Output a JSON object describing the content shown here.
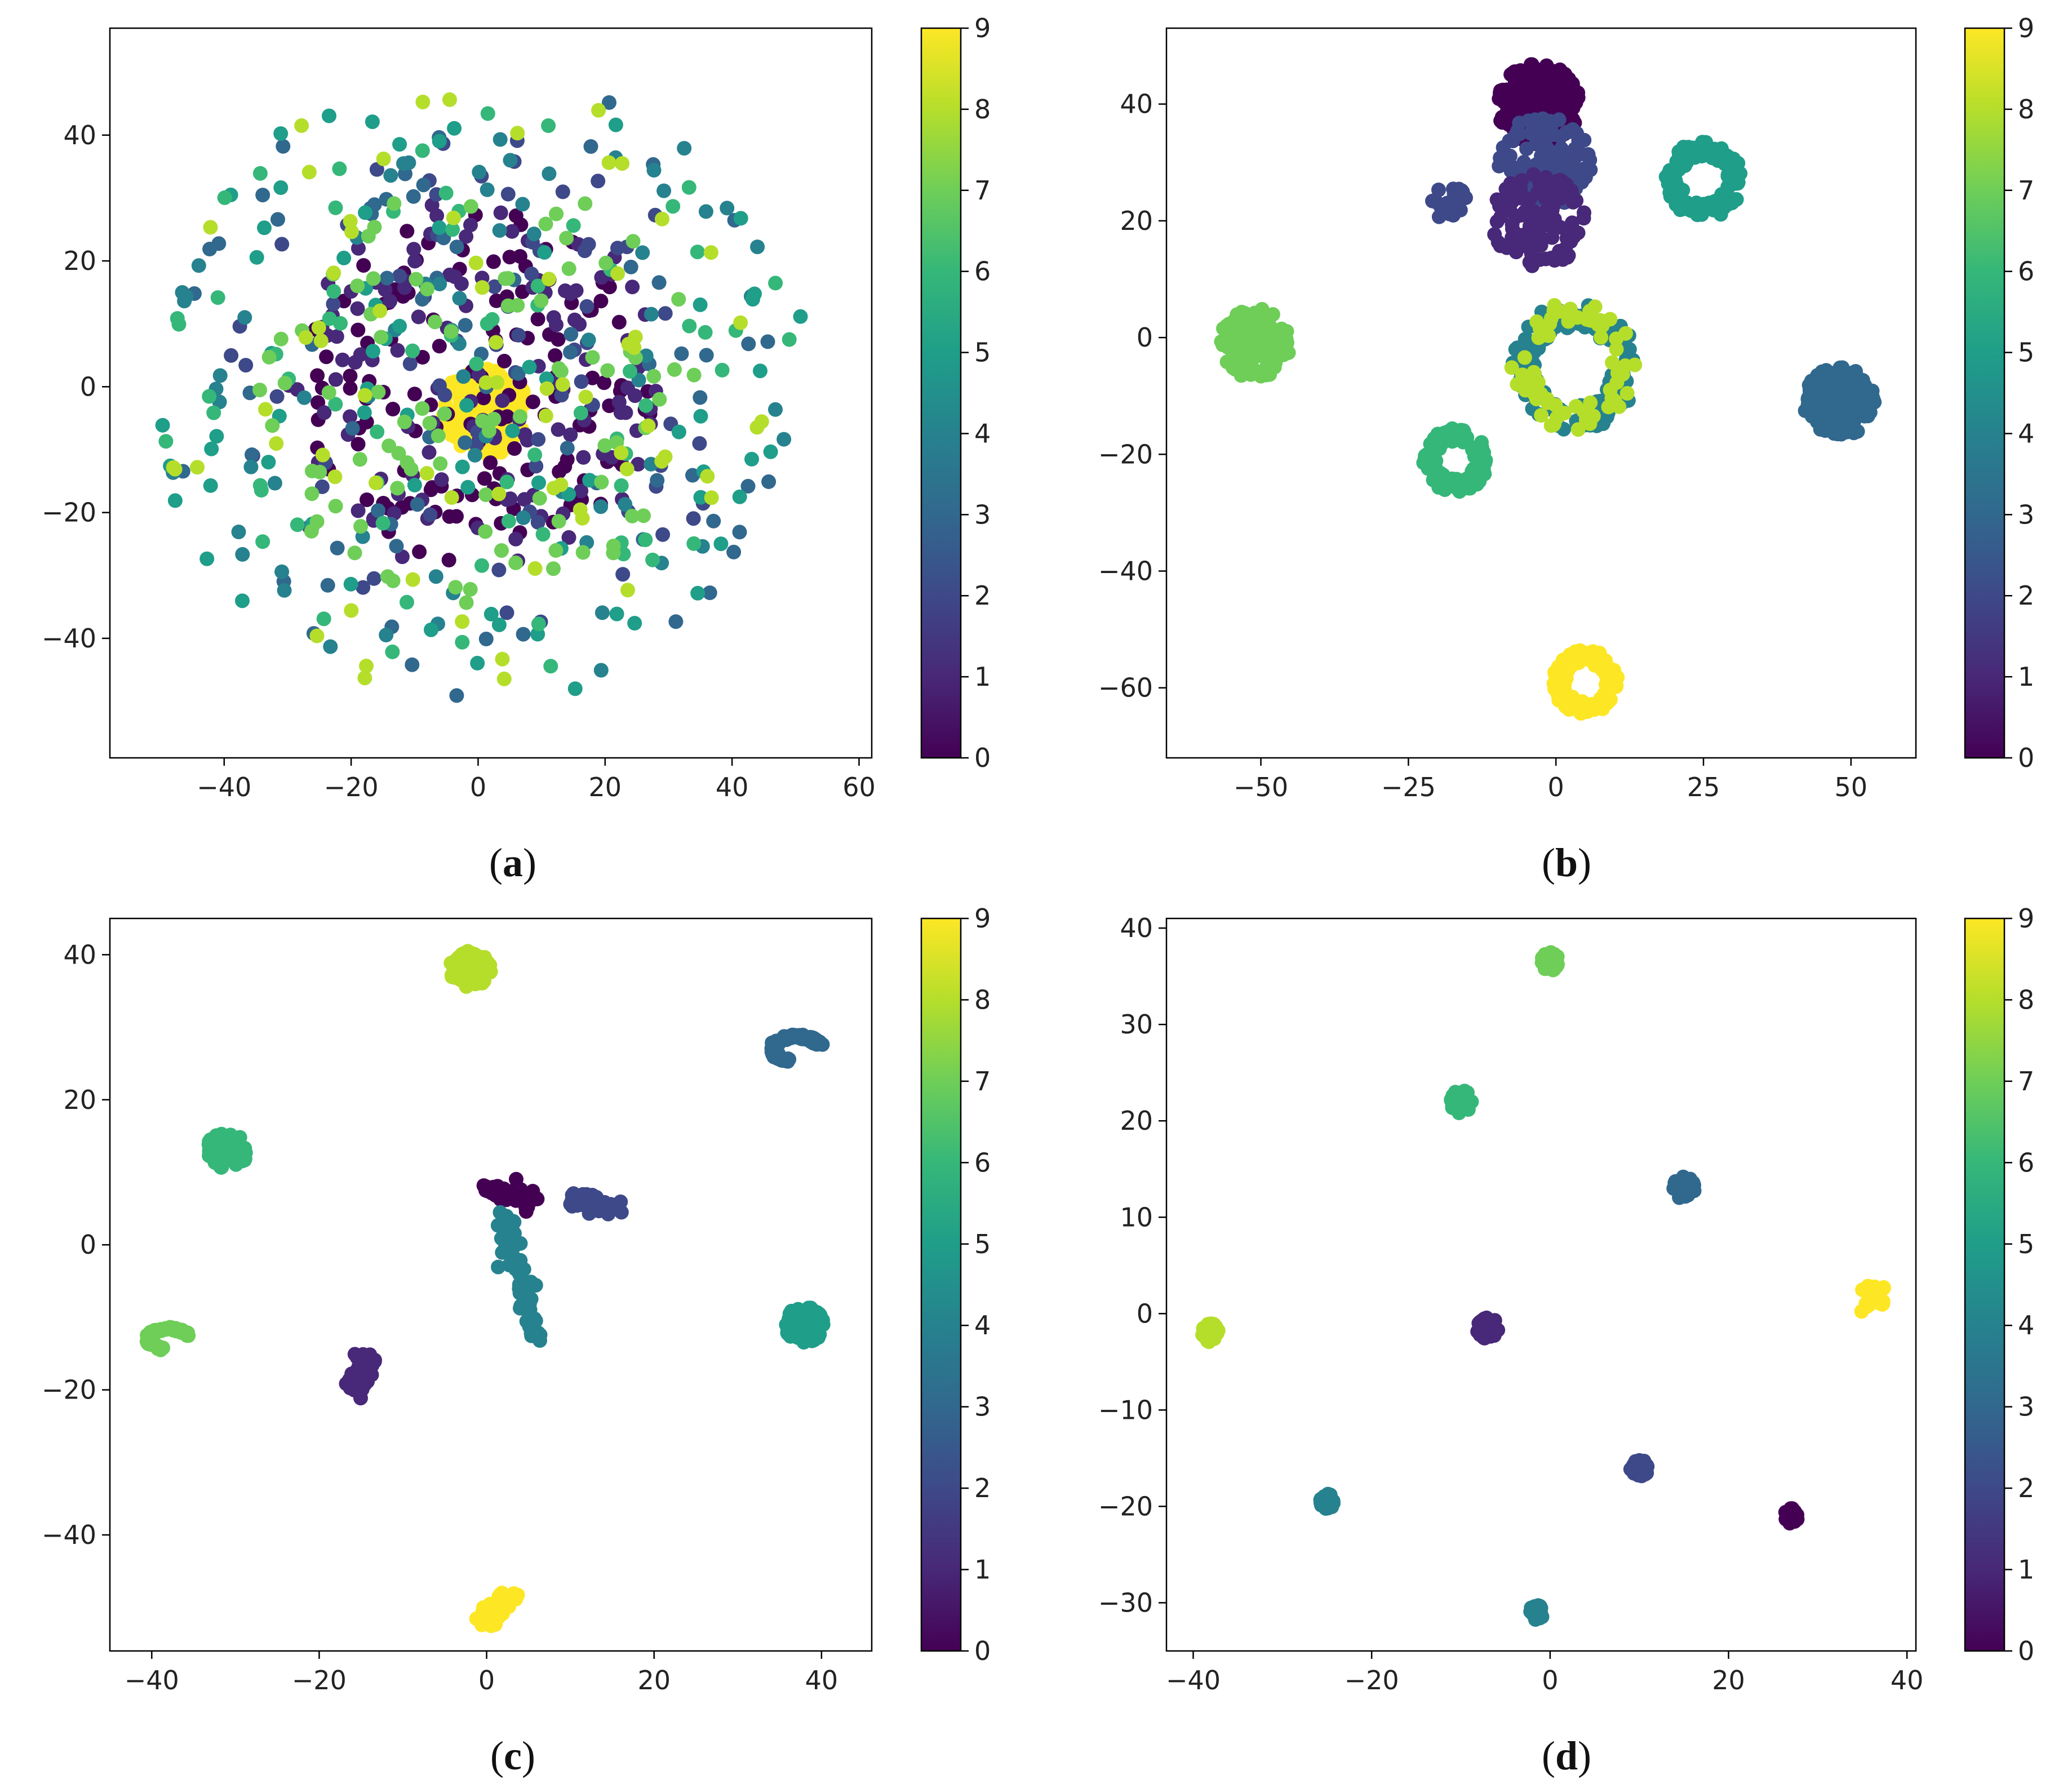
{
  "colormap": {
    "name": "viridis",
    "stops": [
      "#440154",
      "#482878",
      "#3e4989",
      "#31688e",
      "#26828e",
      "#1f9e89",
      "#35b779",
      "#6ece58",
      "#b5de2b",
      "#fde725"
    ]
  },
  "chart_data": [
    {
      "panel": "a",
      "type": "scatter",
      "caption": "(a)",
      "caption_prefix": "(",
      "caption_letter": "a",
      "caption_suffix": ")",
      "xlim": [
        -58,
        62
      ],
      "ylim": [
        -59,
        57
      ],
      "xticks": [
        -40,
        -20,
        0,
        20,
        40,
        60
      ],
      "yticks": [
        -40,
        -20,
        0,
        20,
        40
      ],
      "colorbar": {
        "min": 0,
        "max": 9,
        "ticks": [
          0,
          1,
          2,
          3,
          4,
          5,
          6,
          7,
          8,
          9
        ]
      },
      "layout_note": "diffuse cloud, classes mixed; class 9 dense blob at centre",
      "clusters": [
        {
          "label": 9,
          "cx": 1,
          "cy": -4,
          "shape": "blob",
          "r": 7,
          "n": 180
        },
        {
          "label": 0,
          "cx": 0,
          "cy": 0,
          "shape": "scatter",
          "r": 28,
          "n": 140
        },
        {
          "label": 1,
          "cx": 0,
          "cy": 0,
          "shape": "scatter",
          "r": 30,
          "n": 120
        },
        {
          "label": 2,
          "cx": 0,
          "cy": 0,
          "shape": "scatter",
          "r": 40,
          "n": 70
        },
        {
          "label": 3,
          "cx": 0,
          "cy": 0,
          "shape": "scatter",
          "r": 50,
          "n": 70
        },
        {
          "label": 4,
          "cx": 0,
          "cy": 0,
          "shape": "scatter",
          "r": 50,
          "n": 70
        },
        {
          "label": 5,
          "cx": 0,
          "cy": 0,
          "shape": "scatter",
          "r": 52,
          "n": 70
        },
        {
          "label": 6,
          "cx": 0,
          "cy": 0,
          "shape": "scatter",
          "r": 50,
          "n": 70
        },
        {
          "label": 7,
          "cx": 0,
          "cy": 0,
          "shape": "scatter",
          "r": 35,
          "n": 90
        },
        {
          "label": 8,
          "cx": 0,
          "cy": 0,
          "shape": "scatter",
          "r": 50,
          "n": 70
        }
      ]
    },
    {
      "panel": "b",
      "type": "scatter",
      "caption": "(b)",
      "caption_prefix": "(",
      "caption_letter": "b",
      "caption_suffix": ")",
      "xlim": [
        -66,
        61
      ],
      "ylim": [
        -72,
        53
      ],
      "xticks": [
        -50,
        -25,
        0,
        25,
        50
      ],
      "yticks": [
        -60,
        -40,
        -20,
        0,
        20,
        40
      ],
      "colorbar": {
        "min": 0,
        "max": 9,
        "ticks": [
          0,
          1,
          2,
          3,
          4,
          5,
          6,
          7,
          8,
          9
        ]
      },
      "clusters": [
        {
          "label": 0,
          "cx": -3,
          "cy": 40,
          "shape": "blob",
          "r": 7,
          "n": 180
        },
        {
          "label": 2,
          "cx": -2,
          "cy": 30,
          "shape": "blob",
          "r": 8,
          "n": 120
        },
        {
          "label": 1,
          "cx": -3,
          "cy": 20,
          "shape": "blob",
          "r": 8,
          "n": 100
        },
        {
          "label": 2,
          "cx": -18,
          "cy": 23,
          "shape": "blob",
          "r": 3,
          "n": 25
        },
        {
          "label": 5,
          "cx": 25,
          "cy": 27,
          "shape": "ring",
          "r": 6,
          "n": 140
        },
        {
          "label": 7,
          "cx": -51,
          "cy": -1,
          "shape": "blob",
          "r": 6,
          "n": 160
        },
        {
          "label": 4,
          "cx": 3,
          "cy": -5,
          "shape": "ring",
          "r": 10,
          "n": 140
        },
        {
          "label": 8,
          "cx": 3,
          "cy": -5,
          "shape": "ring",
          "r": 10,
          "n": 70
        },
        {
          "label": 3,
          "cx": 48,
          "cy": -11,
          "shape": "blob",
          "r": 6,
          "n": 160
        },
        {
          "label": 6,
          "cx": -17,
          "cy": -21,
          "shape": "ring",
          "r": 5,
          "n": 140
        },
        {
          "label": 9,
          "cx": 5,
          "cy": -59,
          "shape": "ring",
          "r": 5,
          "n": 150
        }
      ]
    },
    {
      "panel": "c",
      "type": "scatter",
      "caption": "(c)",
      "caption_prefix": "(",
      "caption_letter": "c",
      "caption_suffix": ")",
      "xlim": [
        -45,
        46
      ],
      "ylim": [
        -56,
        45
      ],
      "xticks": [
        -40,
        -20,
        0,
        20,
        40
      ],
      "yticks": [
        -40,
        -20,
        0,
        20,
        40
      ],
      "colorbar": {
        "min": 0,
        "max": 9,
        "ticks": [
          0,
          1,
          2,
          3,
          4,
          5,
          6,
          7,
          8,
          9
        ]
      },
      "clusters": [
        {
          "label": 8,
          "cx": -2,
          "cy": 38,
          "shape": "blob",
          "r": 2.5,
          "n": 80
        },
        {
          "label": 3,
          "cx": 37,
          "cy": 27,
          "shape": "arc",
          "r": 3,
          "n": 90
        },
        {
          "label": 6,
          "cx": -31,
          "cy": 13,
          "shape": "blob",
          "r": 2.5,
          "n": 80
        },
        {
          "label": 0,
          "cx": 0,
          "cy": 8,
          "shape": "line",
          "x2": 6,
          "y2": 6,
          "n": 70
        },
        {
          "label": 4,
          "cx": 2,
          "cy": 4,
          "shape": "line",
          "x2": 6,
          "y2": -13,
          "n": 70
        },
        {
          "label": 2,
          "cx": 10,
          "cy": 6,
          "shape": "line",
          "x2": 16,
          "y2": 5,
          "n": 50
        },
        {
          "label": 7,
          "cx": -38,
          "cy": -13,
          "shape": "arc",
          "r": 2.5,
          "n": 80
        },
        {
          "label": 1,
          "cx": -16,
          "cy": -20,
          "shape": "line",
          "x2": -14,
          "y2": -15,
          "n": 70
        },
        {
          "label": 5,
          "cx": 38,
          "cy": -11,
          "shape": "blob",
          "r": 2.5,
          "n": 70
        },
        {
          "label": 9,
          "cx": 3,
          "cy": -48,
          "shape": "line",
          "x2": 0,
          "y2": -52,
          "n": 80
        }
      ]
    },
    {
      "panel": "d",
      "type": "scatter",
      "caption": "(d)",
      "caption_prefix": "(",
      "caption_letter": "d",
      "caption_suffix": ")",
      "xlim": [
        -43,
        41
      ],
      "ylim": [
        -35,
        41
      ],
      "xticks": [
        -40,
        -20,
        0,
        20,
        40
      ],
      "yticks": [
        -30,
        -20,
        -10,
        0,
        10,
        20,
        30,
        40
      ],
      "colorbar": {
        "min": 0,
        "max": 9,
        "ticks": [
          0,
          1,
          2,
          3,
          4,
          5,
          6,
          7,
          8,
          9
        ]
      },
      "clusters": [
        {
          "label": 7,
          "cx": 0,
          "cy": 36.5,
          "shape": "blob",
          "r": 1,
          "n": 35
        },
        {
          "label": 6,
          "cx": -10,
          "cy": 22,
          "shape": "blob",
          "r": 1.2,
          "n": 35
        },
        {
          "label": 3,
          "cx": 15,
          "cy": 13,
          "shape": "blob",
          "r": 1.2,
          "n": 40
        },
        {
          "label": 8,
          "cx": -38,
          "cy": -2,
          "shape": "blob",
          "r": 1,
          "n": 35
        },
        {
          "label": 1,
          "cx": -7,
          "cy": -1.5,
          "shape": "blob",
          "r": 1.2,
          "n": 35
        },
        {
          "label": 9,
          "cx": 35.5,
          "cy": 1.5,
          "shape": "line",
          "x2": 37,
          "y2": 2.5,
          "n": 30
        },
        {
          "label": 2,
          "cx": 10,
          "cy": -16,
          "shape": "blob",
          "r": 1,
          "n": 30
        },
        {
          "label": 4,
          "cx": -25,
          "cy": -19.5,
          "shape": "blob",
          "r": 0.8,
          "n": 30
        },
        {
          "label": 0,
          "cx": 27,
          "cy": -21,
          "shape": "blob",
          "r": 0.8,
          "n": 30
        },
        {
          "label": 4,
          "cx": -1.5,
          "cy": -31,
          "shape": "blob",
          "r": 0.8,
          "n": 30
        }
      ]
    }
  ]
}
